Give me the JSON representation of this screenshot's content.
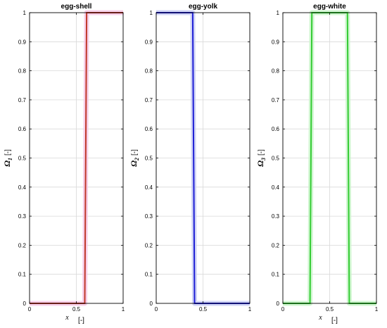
{
  "chart_data": [
    {
      "type": "line",
      "title": "egg-shell",
      "xlabel": "x",
      "xunit": "[-]",
      "ylabel": "Ω",
      "ysub": "1",
      "yunit": "[-]",
      "xlim": [
        0,
        1
      ],
      "ylim": [
        0,
        1
      ],
      "xticks": [
        "0",
        "0.5",
        "1"
      ],
      "yticks": [
        "0",
        "0.1",
        "0.2",
        "0.3",
        "0.4",
        "0.5",
        "0.6",
        "0.7",
        "0.8",
        "0.9",
        "1"
      ],
      "grid": true,
      "color": "#c0392b",
      "band_color": "#f6c8e6",
      "x": [
        0,
        0.59,
        0.61,
        1
      ],
      "y": [
        0,
        0,
        1,
        1
      ]
    },
    {
      "type": "line",
      "title": "egg-yolk",
      "xlabel": "",
      "xunit": "",
      "ylabel": "Ω",
      "ysub": "2",
      "yunit": "[-]",
      "xlim": [
        0,
        1
      ],
      "ylim": [
        0,
        1
      ],
      "xticks": [
        "0",
        "0.5",
        "1"
      ],
      "yticks": [
        "0",
        "0.1",
        "0.2",
        "0.3",
        "0.4",
        "0.5",
        "0.6",
        "0.7",
        "0.8",
        "0.9",
        "1"
      ],
      "grid": true,
      "color": "#1f1fd6",
      "band_color": "#c8ccf5",
      "x": [
        0,
        0.39,
        0.41,
        1
      ],
      "y": [
        1,
        1,
        0,
        0
      ]
    },
    {
      "type": "line",
      "title": "egg-white",
      "xlabel": "x",
      "xunit": "[-]",
      "ylabel": "Ω",
      "ysub": "3",
      "yunit": "[-]",
      "xlim": [
        0,
        1
      ],
      "ylim": [
        0,
        1
      ],
      "xticks": [
        "0",
        "0.5",
        "1"
      ],
      "yticks": [
        "0",
        "0.1",
        "0.2",
        "0.3",
        "0.4",
        "0.5",
        "0.6",
        "0.7",
        "0.8",
        "0.9",
        "1"
      ],
      "grid": true,
      "color": "#33cc33",
      "band_color": "#c8f5c8",
      "x": [
        0,
        0.29,
        0.31,
        0.69,
        0.71,
        1
      ],
      "y": [
        0,
        0,
        1,
        1,
        0,
        0
      ]
    }
  ]
}
